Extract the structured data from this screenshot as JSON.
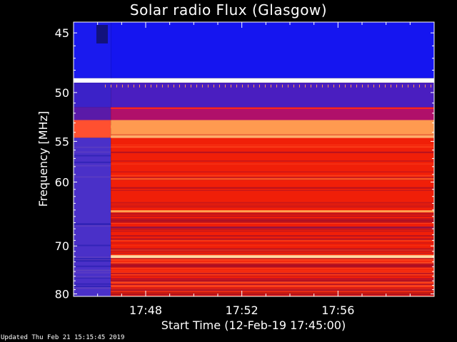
{
  "chart_data": {
    "type": "heatmap",
    "title": "Solar radio Flux (Glasgow)",
    "xlabel": "Start Time (12-Feb-19 17:45:00)",
    "ylabel": "Frequency [MHz]",
    "x_ticks": [
      "17:48",
      "17:52",
      "17:56"
    ],
    "x_tick_minutes": [
      3,
      7,
      11
    ],
    "x_range_minutes": [
      0,
      15
    ],
    "y_ticks": [
      45,
      50,
      55,
      60,
      70,
      80
    ],
    "y_scale": "reciprocal",
    "y_range": [
      44.2,
      80.6
    ],
    "data_start_minutes": 1.55,
    "background_row_colors": [
      {
        "from": 44.2,
        "to": 48.7,
        "pre": "#1a1aee",
        "post": "#1515f0"
      },
      {
        "from": 48.7,
        "to": 49.1,
        "pre": "#ffffff",
        "post": "#fffbe0"
      },
      {
        "from": 49.1,
        "to": 51.4,
        "pre": "#3b22c8",
        "post": "#4a1ec0"
      },
      {
        "from": 51.4,
        "to": 52.7,
        "pre": "#5a1aa8",
        "post": "#b0106a"
      },
      {
        "from": 52.7,
        "to": 54.6,
        "pre": "#ff5030",
        "post": "#ff9a50"
      },
      {
        "from": 54.6,
        "to": 80.6,
        "pre": "#4a30c8",
        "post": "#f01f08"
      }
    ],
    "bright_lines_mhz": [
      {
        "f": 48.9,
        "color": "#ffffff",
        "width": 5
      },
      {
        "f": 51.5,
        "color": "#ff2a18",
        "width": 2
      },
      {
        "f": 53.4,
        "color": "#ff9a50",
        "width": 4
      },
      {
        "f": 54.5,
        "color": "#ffb070",
        "width": 3
      },
      {
        "f": 59.6,
        "color": "#ff5a20",
        "width": 2
      },
      {
        "f": 64.2,
        "color": "#ffa050",
        "width": 3
      },
      {
        "f": 66.8,
        "color": "#9a1240",
        "width": 3
      },
      {
        "f": 72.0,
        "color": "#ffd9a0",
        "width": 4
      },
      {
        "f": 76.6,
        "color": "#b01030",
        "width": 2
      },
      {
        "f": 79.8,
        "color": "#c41a10",
        "width": 3
      }
    ],
    "colors": {
      "low": "#1010e8",
      "mid": "#6a1aa0",
      "high": "#f21e0c",
      "peak": "#ffffd0",
      "axes": "#ffffff"
    }
  },
  "footer": {
    "updated": "Updated Thu Feb 21 15:15:45 2019"
  }
}
